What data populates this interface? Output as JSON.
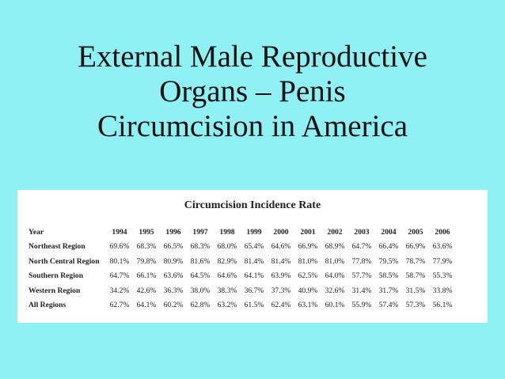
{
  "title": {
    "line1": "External Male Reproductive",
    "line2": "Organs – Penis",
    "line3": "Circumcision in America"
  },
  "table": {
    "title": "Circumcision Incidence Rate",
    "header_label": "Year",
    "years": [
      "1994",
      "1995",
      "1996",
      "1997",
      "1998",
      "1999",
      "2000",
      "2001",
      "2002",
      "2003",
      "2004",
      "2005",
      "2006"
    ],
    "rows": [
      {
        "label": "Northeast Region",
        "values": [
          "69.6%",
          "68.3%",
          "66.5%",
          "68.3%",
          "68.0%",
          "65.4%",
          "64.6%",
          "66.9%",
          "68.9%",
          "64.7%",
          "66.4%",
          "66.9%",
          "63.6%"
        ]
      },
      {
        "label": "North Central Region",
        "values": [
          "80.1%",
          "79.8%",
          "80.9%",
          "81.6%",
          "82.9%",
          "81.4%",
          "81.4%",
          "81.0%",
          "81.0%",
          "77.8%",
          "79.5%",
          "78.7%",
          "77.9%"
        ]
      },
      {
        "label": "Southern Region",
        "values": [
          "64.7%",
          "66.1%",
          "63.6%",
          "64.5%",
          "64.6%",
          "64.1%",
          "63.9%",
          "62.5%",
          "64.0%",
          "57.7%",
          "58.5%",
          "58.7%",
          "55.3%"
        ]
      },
      {
        "label": "Western Region",
        "values": [
          "34.2%",
          "42.6%",
          "36.3%",
          "38.0%",
          "38.3%",
          "36.7%",
          "37.3%",
          "40.9%",
          "32.6%",
          "31.4%",
          "31.7%",
          "31.5%",
          "33.8%"
        ]
      },
      {
        "label": "All Regions",
        "values": [
          "62.7%",
          "64.1%",
          "60.2%",
          "62.8%",
          "63.2%",
          "61.5%",
          "62.4%",
          "63.1%",
          "60.1%",
          "55.9%",
          "57.4%",
          "57.3%",
          "56.1%"
        ]
      }
    ]
  }
}
